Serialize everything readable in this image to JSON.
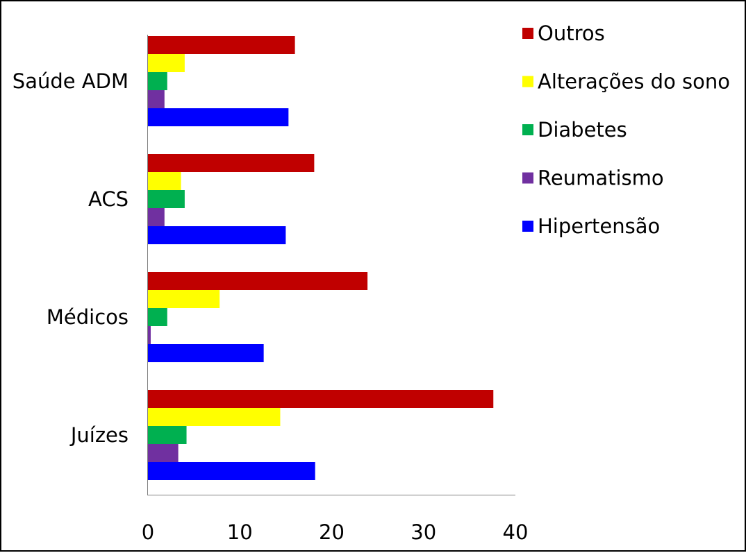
{
  "chart_data": {
    "type": "bar",
    "orientation": "horizontal",
    "categories": [
      "Saúde ADM",
      "ACS",
      "Médicos",
      "Juízes"
    ],
    "series": [
      {
        "name": "Outros",
        "color": "#c00000",
        "values": [
          16,
          18.1,
          23.9,
          37.6
        ]
      },
      {
        "name": "Alterações do sono",
        "color": "#ffff00",
        "values": [
          4,
          3.6,
          7.8,
          14.4
        ]
      },
      {
        "name": "Diabetes",
        "color": "#00b050",
        "values": [
          2.1,
          4,
          2.1,
          4.2
        ]
      },
      {
        "name": "Reumatismo",
        "color": "#7030a0",
        "values": [
          1.8,
          1.8,
          0.3,
          3.3
        ]
      },
      {
        "name": "Hipertensão",
        "color": "#0000ff",
        "values": [
          15.3,
          15,
          12.6,
          18.2
        ]
      }
    ],
    "xlim": [
      0,
      40
    ],
    "xticks": [
      "0",
      "10",
      "20",
      "30",
      "40"
    ],
    "grid": false,
    "legend": "top-right"
  }
}
